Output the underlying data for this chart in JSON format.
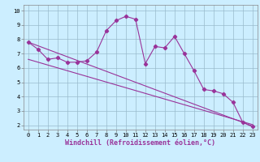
{
  "background_color": "#cceeff",
  "plot_bg_color": "#cceeff",
  "line_color": "#993399",
  "grid_color": "#99bbcc",
  "xlim_min": -0.5,
  "xlim_max": 23.5,
  "ylim_min": 1.7,
  "ylim_max": 10.4,
  "xticks": [
    0,
    1,
    2,
    3,
    4,
    5,
    6,
    7,
    8,
    9,
    10,
    11,
    12,
    13,
    14,
    15,
    16,
    17,
    18,
    19,
    20,
    21,
    22,
    23
  ],
  "yticks": [
    2,
    3,
    4,
    5,
    6,
    7,
    8,
    9,
    10
  ],
  "line1_x": [
    0,
    1,
    2,
    3,
    4,
    5,
    6,
    7,
    8,
    9,
    10,
    11,
    12,
    13,
    14,
    15,
    16,
    17,
    18,
    19,
    20,
    21,
    22,
    23
  ],
  "line1_y": [
    7.8,
    7.3,
    6.6,
    6.7,
    6.4,
    6.4,
    6.5,
    7.1,
    8.6,
    9.3,
    9.6,
    9.4,
    6.3,
    7.5,
    7.4,
    8.2,
    7.0,
    5.8,
    4.5,
    4.4,
    4.2,
    3.6,
    2.2,
    1.9
  ],
  "trend1_x": [
    0,
    23
  ],
  "trend1_y": [
    7.8,
    1.95
  ],
  "trend2_x": [
    0,
    23
  ],
  "trend2_y": [
    6.6,
    2.05
  ],
  "xlabel": "Windchill (Refroidissement éolien,°C)",
  "tick_fontsize": 5.0,
  "xlabel_fontsize": 6.0,
  "linewidth": 0.8,
  "markersize": 2.2,
  "marker": "D"
}
